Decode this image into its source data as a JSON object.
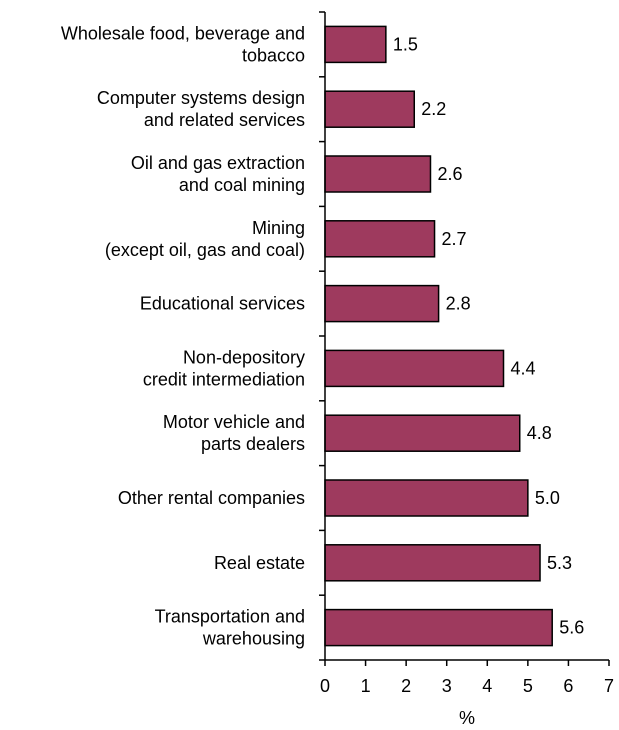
{
  "chart_data": {
    "type": "bar",
    "orientation": "horizontal",
    "categories": [
      [
        "Wholesale food, beverage and",
        "tobacco"
      ],
      [
        "Computer systems design",
        "and related services"
      ],
      [
        "Oil and gas extraction",
        "and coal mining"
      ],
      [
        "Mining",
        "(except oil, gas and coal)"
      ],
      [
        "Educational services"
      ],
      [
        "Non-depository",
        "credit intermediation"
      ],
      [
        "Motor vehicle and",
        "parts dealers"
      ],
      [
        "Other rental companies"
      ],
      [
        "Real estate"
      ],
      [
        "Transportation and",
        "warehousing"
      ]
    ],
    "values": [
      1.5,
      2.2,
      2.6,
      2.7,
      2.8,
      4.4,
      4.8,
      5.0,
      5.3,
      5.6
    ],
    "value_labels": [
      "1.5",
      "2.2",
      "2.6",
      "2.7",
      "2.8",
      "4.4",
      "4.8",
      "5.0",
      "5.3",
      "5.6"
    ],
    "xlim": [
      0,
      7
    ],
    "xticks": [
      0,
      1,
      2,
      3,
      4,
      5,
      6,
      7
    ],
    "xlabel": "%",
    "ylabel": "",
    "title": "",
    "grid": false,
    "colors": {
      "bar_fill": "#9e3a5e",
      "bar_stroke": "#000000"
    }
  }
}
